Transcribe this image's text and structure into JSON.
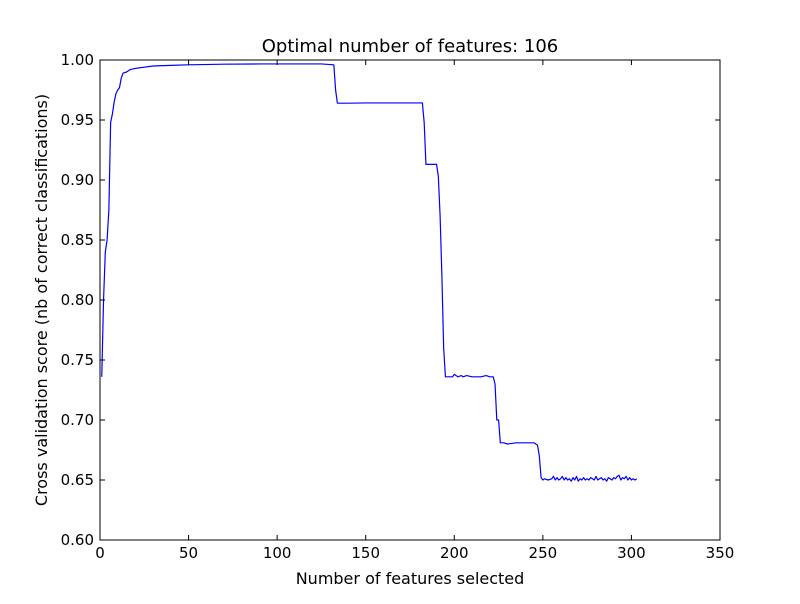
{
  "chart_data": {
    "type": "line",
    "title": "Optimal number of features: 106",
    "xlabel": "Number of features selected",
    "ylabel": "Cross validation score (nb of correct classifications)",
    "xlim": [
      0,
      350
    ],
    "ylim": [
      0.6,
      1.0
    ],
    "x_ticks": [
      0,
      50,
      100,
      150,
      200,
      250,
      300,
      350
    ],
    "x_tick_labels": [
      "0",
      "50",
      "100",
      "150",
      "200",
      "250",
      "300",
      "350"
    ],
    "y_ticks": [
      0.6,
      0.65,
      0.7,
      0.75,
      0.8,
      0.85,
      0.9,
      0.95,
      1.0
    ],
    "y_tick_labels": [
      "0.60",
      "0.65",
      "0.70",
      "0.75",
      "0.80",
      "0.85",
      "0.90",
      "0.95",
      "1.00"
    ],
    "grid": false,
    "line_color": "#0000ff",
    "series": [
      {
        "x": [
          1,
          2,
          3,
          4,
          5,
          6,
          7,
          8,
          9,
          10,
          11,
          12,
          13,
          15,
          17,
          20,
          25,
          30,
          40,
          50,
          70,
          90,
          110,
          125,
          132,
          133,
          134,
          140,
          150,
          160,
          170,
          182,
          183,
          184,
          186,
          190,
          191,
          192,
          193,
          194,
          195,
          196,
          199,
          200,
          202,
          204,
          205,
          207,
          210,
          215,
          218,
          220,
          222,
          223,
          224,
          225,
          226,
          228,
          230,
          235,
          240,
          245,
          247,
          248,
          249,
          250,
          251,
          253,
          255,
          256,
          257,
          258,
          259,
          260,
          261,
          262,
          263,
          264,
          265,
          266,
          267,
          268,
          269,
          270,
          271,
          272,
          273,
          274,
          275,
          276,
          277,
          278,
          279,
          280,
          281,
          282,
          283,
          284,
          285,
          286,
          287,
          288,
          289,
          290,
          291,
          292,
          293,
          294,
          295,
          296,
          297,
          298,
          299,
          300,
          301,
          302,
          303
        ],
        "y": [
          0.736,
          0.8,
          0.84,
          0.85,
          0.875,
          0.948,
          0.955,
          0.965,
          0.972,
          0.975,
          0.977,
          0.985,
          0.989,
          0.99,
          0.992,
          0.993,
          0.994,
          0.995,
          0.9955,
          0.996,
          0.9965,
          0.9967,
          0.9967,
          0.9967,
          0.996,
          0.975,
          0.964,
          0.964,
          0.9642,
          0.9642,
          0.9642,
          0.9642,
          0.948,
          0.913,
          0.913,
          0.913,
          0.903,
          0.87,
          0.82,
          0.76,
          0.736,
          0.736,
          0.736,
          0.738,
          0.736,
          0.737,
          0.736,
          0.737,
          0.736,
          0.736,
          0.737,
          0.736,
          0.736,
          0.73,
          0.7,
          0.7,
          0.681,
          0.681,
          0.68,
          0.681,
          0.681,
          0.681,
          0.679,
          0.67,
          0.652,
          0.65,
          0.651,
          0.65,
          0.651,
          0.653,
          0.65,
          0.652,
          0.65,
          0.651,
          0.653,
          0.65,
          0.652,
          0.65,
          0.651,
          0.649,
          0.652,
          0.65,
          0.653,
          0.649,
          0.651,
          0.65,
          0.652,
          0.65,
          0.651,
          0.65,
          0.652,
          0.651,
          0.65,
          0.653,
          0.65,
          0.651,
          0.652,
          0.65,
          0.651,
          0.649,
          0.652,
          0.651,
          0.65,
          0.652,
          0.651,
          0.653,
          0.654,
          0.65,
          0.652,
          0.651,
          0.653,
          0.65,
          0.652,
          0.65,
          0.651,
          0.65,
          0.651
        ]
      }
    ]
  }
}
